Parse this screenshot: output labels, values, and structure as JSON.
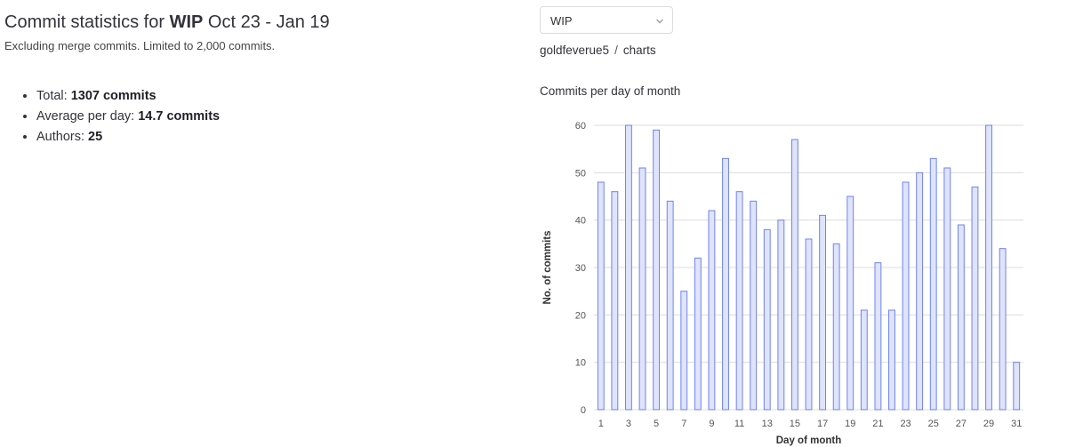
{
  "header": {
    "title_prefix": "Commit statistics for ",
    "ref": "WIP",
    "date_range": " Oct 23 - Jan 19",
    "subtitle": "Excluding merge commits. Limited to 2,000 commits."
  },
  "stats": {
    "total_label": "Total: ",
    "total_value": "1307 commits",
    "avg_label": "Average per day: ",
    "avg_value": "14.7 commits",
    "authors_label": "Authors: ",
    "authors_value": "25"
  },
  "branch_select": {
    "value": "WIP",
    "icon": "chevron-down-icon"
  },
  "breadcrumb": {
    "project": "goldfeverue5",
    "separator": "/",
    "page": "charts"
  },
  "chart_title": "Commits per day of month",
  "colors": {
    "bar_fill": "#dfe4fb",
    "bar_stroke": "#6f82f2",
    "grid": "#dcdcdc",
    "axis_text": "#555555"
  },
  "chart_data": {
    "type": "bar",
    "categories": [
      "1",
      "2",
      "3",
      "4",
      "5",
      "6",
      "7",
      "8",
      "9",
      "10",
      "11",
      "12",
      "13",
      "14",
      "15",
      "16",
      "17",
      "18",
      "19",
      "20",
      "21",
      "22",
      "23",
      "24",
      "25",
      "26",
      "27",
      "28",
      "29",
      "30",
      "31"
    ],
    "values": [
      48,
      46,
      60,
      51,
      59,
      44,
      25,
      32,
      42,
      53,
      46,
      44,
      38,
      40,
      57,
      36,
      41,
      35,
      45,
      21,
      31,
      21,
      48,
      50,
      53,
      51,
      39,
      47,
      60,
      34,
      10
    ],
    "xlabel": "Day of month",
    "ylabel": "No. of commits",
    "ylim": [
      0,
      60
    ],
    "yticks": [
      0,
      10,
      20,
      30,
      40,
      50,
      60
    ],
    "xtick_labels": [
      "1",
      "3",
      "5",
      "7",
      "9",
      "11",
      "13",
      "15",
      "17",
      "19",
      "21",
      "23",
      "25",
      "27",
      "29",
      "31"
    ],
    "grid": true
  }
}
